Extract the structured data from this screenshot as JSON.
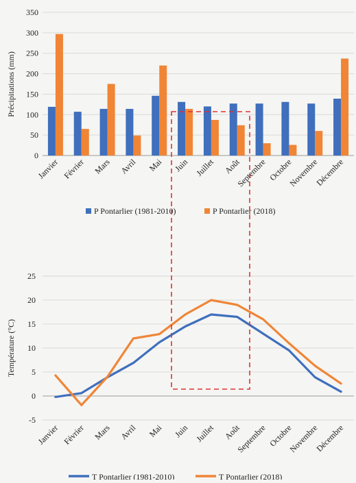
{
  "colors": {
    "blue": "#3f6fbd",
    "orange": "#f08536",
    "grid": "#d9d9d9",
    "highlight": "#e03030"
  },
  "chart_data": [
    {
      "type": "bar",
      "categories": [
        "Janvier",
        "Février",
        "Mars",
        "Avril",
        "Mai",
        "Juin",
        "Juillet",
        "Août",
        "Septembre",
        "Octobre",
        "Novembre",
        "Décembre"
      ],
      "series": [
        {
          "name": "P Pontarlier (1981-2010)",
          "color": "#3f6fbd",
          "values": [
            119,
            107,
            114,
            114,
            146,
            131,
            120,
            127,
            127,
            131,
            127,
            139
          ]
        },
        {
          "name": "P Pontarlier (2018)",
          "color": "#f08536",
          "values": [
            297,
            65,
            175,
            49,
            220,
            114,
            87,
            74,
            30,
            26,
            60,
            237
          ]
        }
      ],
      "ylabel": "Précipitations (mm)",
      "ylim": [
        0,
        350
      ],
      "yticks": [
        0,
        50,
        100,
        150,
        200,
        250,
        300,
        350
      ],
      "grid": true,
      "legend": "bottom"
    },
    {
      "type": "line",
      "categories": [
        "Janvier",
        "Février",
        "Mars",
        "Avril",
        "Mai",
        "Juin",
        "Juillet",
        "Août",
        "Septembre",
        "Octobre",
        "Novembre",
        "Décembre"
      ],
      "series": [
        {
          "name": "T Pontarlier (1981-2010)",
          "color": "#3f6fbd",
          "values": [
            -0.2,
            0.6,
            3.9,
            6.9,
            11.2,
            14.5,
            17.0,
            16.5,
            13.0,
            9.5,
            3.9,
            0.9
          ]
        },
        {
          "name": "T Pontarlier (2018)",
          "color": "#f08536",
          "values": [
            4.3,
            -1.9,
            4.0,
            12.0,
            12.9,
            17.0,
            20.0,
            19.0,
            16.0,
            11.0,
            6.3,
            2.6
          ]
        }
      ],
      "ylabel": "Température (°C)",
      "ylim": [
        -5,
        25
      ],
      "yticks": [
        -5,
        0,
        5,
        10,
        15,
        20,
        25
      ],
      "grid": true,
      "legend": "bottom"
    }
  ]
}
